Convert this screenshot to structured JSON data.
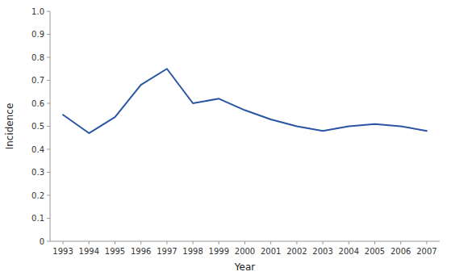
{
  "chart_data": {
    "type": "line",
    "x": [
      1993,
      1994,
      1995,
      1996,
      1997,
      1998,
      1999,
      2000,
      2001,
      2002,
      2003,
      2004,
      2005,
      2006,
      2007
    ],
    "values": [
      0.55,
      0.47,
      0.54,
      0.68,
      0.75,
      0.6,
      0.62,
      0.57,
      0.53,
      0.5,
      0.48,
      0.5,
      0.51,
      0.5,
      0.48
    ],
    "color": "#2955a3",
    "xlabel": "Year",
    "ylabel": "Incidence",
    "xlim": [
      1992.5,
      2007.5
    ],
    "xticks": [
      1993,
      1994,
      1995,
      1996,
      1997,
      1998,
      1999,
      2000,
      2001,
      2002,
      2003,
      2004,
      2005,
      2006,
      2007
    ],
    "ylim": [
      0,
      1.0
    ],
    "yticks": [
      0,
      0.1,
      0.2,
      0.3,
      0.4,
      0.5,
      0.6,
      0.7,
      0.8,
      0.9,
      {
        "value": 1.0,
        "label": "1.0"
      }
    ],
    "grid": false
  }
}
